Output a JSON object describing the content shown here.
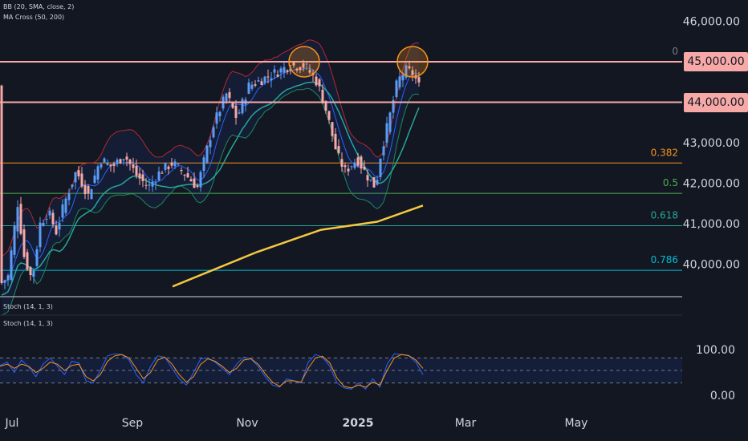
{
  "indicators": {
    "bb": "BB (20, SMA, close, 2)",
    "ma_cross": "MA Cross (50, 200)",
    "stoch_top": "Stoch (14, 1, 3)",
    "stoch_pane": "Stoch (14, 1, 3)"
  },
  "colors": {
    "background": "#131722",
    "up_candle": "#5b9cf6",
    "down_candle": "#f7a9a8",
    "bb_upper": "#b22833",
    "bb_lower": "#1e8a5d",
    "bb_basis": "#2962ff",
    "ma50": "#26a69a",
    "ma200": "#f5c842",
    "resistance": "#f7a9a8",
    "fib_0382": "#f7931a",
    "fib_05": "#4caf50",
    "fib_0618": "#26a69a",
    "fib_0786": "#00bcd4",
    "stoch_k": "#2962ff",
    "stoch_d": "#f7931a",
    "highlight_circle": "#f7931a"
  },
  "chart_data": [
    {
      "type": "candlestick",
      "title": "",
      "y_axis_ticks": [
        "46,000.00",
        "45,000.00",
        "44,000.00",
        "43,000.00",
        "42,000.00",
        "41,000.00",
        "40,000.00"
      ],
      "x_axis_ticks": [
        "Jul",
        "Sep",
        "Nov",
        "2025",
        "Mar",
        "May"
      ],
      "ylim": [
        39480,
        46350
      ],
      "horizontal_levels": [
        {
          "label": "45,000.00",
          "value": 45000,
          "type": "resistance"
        },
        {
          "label": "44,000.00",
          "value": 44000,
          "type": "resistance"
        }
      ],
      "fibonacci_levels": [
        {
          "label": "0",
          "value": 45000
        },
        {
          "label": "0.382",
          "value": 42500
        },
        {
          "label": "0.5",
          "value": 41750
        },
        {
          "label": "0.618",
          "value": 40950
        },
        {
          "label": "0.786",
          "value": 39850
        }
      ],
      "double_top_markers": [
        "2024-12-04",
        "2025-01-27"
      ],
      "ma200_range": [
        39450,
        41450
      ],
      "grid": false
    },
    {
      "type": "line",
      "title": "",
      "y_axis_ticks": [
        "100.00",
        "0.00"
      ],
      "bands": [
        80,
        20
      ],
      "series": [
        {
          "values": [
            62,
            70,
            45,
            75,
            58,
            35,
            65,
            80,
            60,
            40,
            72,
            68,
            25,
            20,
            50,
            85,
            90,
            88,
            75,
            40,
            20,
            60,
            85,
            82,
            55,
            30,
            15,
            45,
            78,
            80,
            70,
            55,
            40,
            65,
            82,
            78,
            60,
            35,
            15,
            10,
            30,
            25,
            20,
            70,
            88,
            82,
            60,
            20,
            8,
            5,
            20,
            5,
            30,
            10,
            65,
            90,
            88,
            85,
            70,
            40
          ]
        },
        {
          "values": [
            60,
            65,
            55,
            65,
            60,
            45,
            55,
            70,
            65,
            50,
            62,
            65,
            35,
            25,
            40,
            72,
            85,
            88,
            80,
            55,
            30,
            45,
            75,
            82,
            65,
            40,
            22,
            35,
            65,
            78,
            72,
            60,
            45,
            55,
            75,
            78,
            65,
            42,
            22,
            12,
            25,
            25,
            22,
            55,
            80,
            84,
            68,
            32,
            12,
            8,
            15,
            10,
            22,
            15,
            50,
            80,
            88,
            86,
            75,
            55
          ]
        }
      ]
    }
  ]
}
